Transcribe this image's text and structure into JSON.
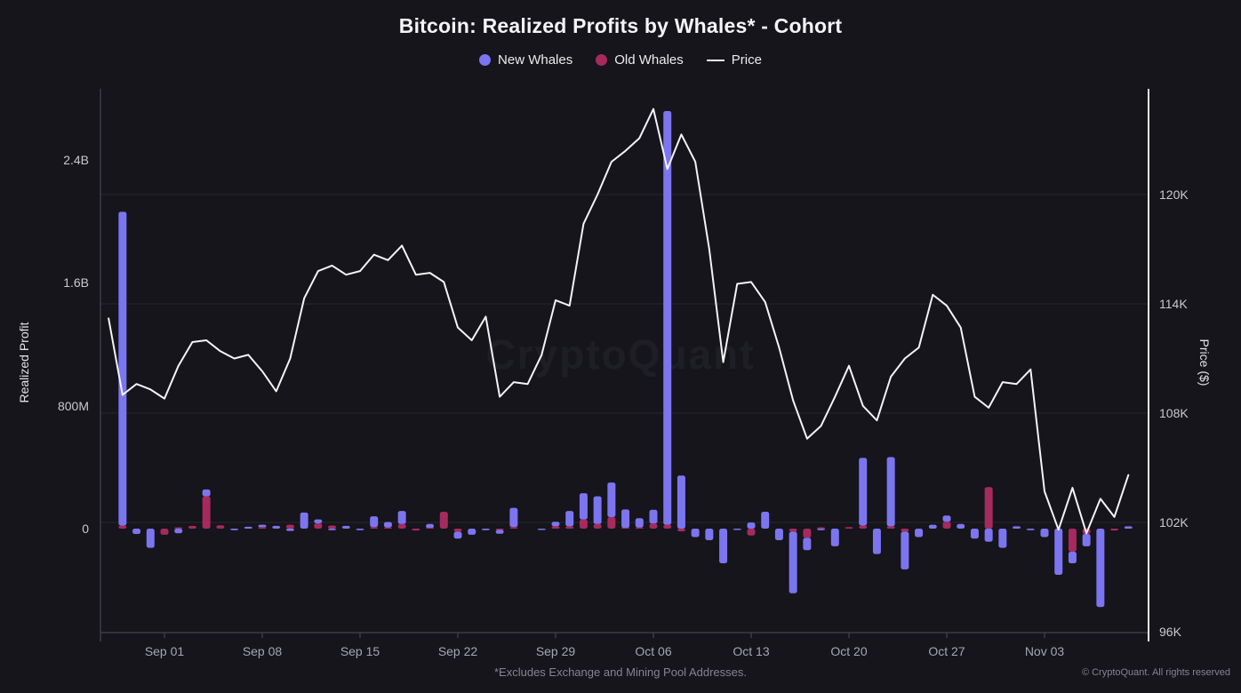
{
  "title": "Bitcoin: Realized Profits by Whales* - Cohort",
  "legend": {
    "new_whales_label": "New Whales",
    "old_whales_label": "Old Whales",
    "price_label": "Price"
  },
  "watermark": "CryptoQuant",
  "footnote": "*Excludes Exchange and Mining Pool Addresses.",
  "copyright": "© CryptoQuant. All rights reserved",
  "colors": {
    "background": "#15151B",
    "new_whales": "#7C75F0",
    "old_whales": "#A62A5E",
    "price_line": "#F4F4F6",
    "gridline": "#26262E",
    "axis_gray": "#3C3C46",
    "axis_white": "#E6E6EA"
  },
  "chart_data": {
    "type": "bar+line combo",
    "title": "Bitcoin: Realized Profits by Whales* - Cohort",
    "left_axis": {
      "label": "Realized Profit",
      "ticks": [
        {
          "label": "0",
          "value": 0
        },
        {
          "label": "800M",
          "value": 800
        },
        {
          "label": "1.6B",
          "value": 1600
        },
        {
          "label": "2.4B",
          "value": 2400
        }
      ],
      "units": "USD (millions)"
    },
    "right_axis": {
      "label": "Price ($)",
      "ticks": [
        {
          "label": "96K",
          "value": 96
        },
        {
          "label": "102K",
          "value": 102
        },
        {
          "label": "108K",
          "value": 108
        },
        {
          "label": "114K",
          "value": 114
        },
        {
          "label": "120K",
          "value": 120
        }
      ],
      "units": "USD (thousands)"
    },
    "x_axis": {
      "week_tick_labels": [
        "Sep 01",
        "Sep 08",
        "Sep 15",
        "Sep 22",
        "Sep 29",
        "Oct 06",
        "Oct 13",
        "Oct 20",
        "Oct 27",
        "Nov 03"
      ],
      "first_week_tick_index": 4,
      "days_per_tick": 7
    },
    "dates": [
      "Aug 28",
      "Aug 29",
      "Aug 30",
      "Aug 31",
      "Sep 01",
      "Sep 02",
      "Sep 03",
      "Sep 04",
      "Sep 05",
      "Sep 06",
      "Sep 07",
      "Sep 08",
      "Sep 09",
      "Sep 10",
      "Sep 11",
      "Sep 12",
      "Sep 13",
      "Sep 14",
      "Sep 15",
      "Sep 16",
      "Sep 17",
      "Sep 18",
      "Sep 19",
      "Sep 20",
      "Sep 21",
      "Sep 22",
      "Sep 23",
      "Sep 24",
      "Sep 25",
      "Sep 26",
      "Sep 27",
      "Sep 28",
      "Sep 29",
      "Sep 30",
      "Oct 01",
      "Oct 02",
      "Oct 03",
      "Oct 04",
      "Oct 05",
      "Oct 06",
      "Oct 07",
      "Oct 08",
      "Oct 09",
      "Oct 10",
      "Oct 11",
      "Oct 12",
      "Oct 13",
      "Oct 14",
      "Oct 15",
      "Oct 16",
      "Oct 17",
      "Oct 18",
      "Oct 19",
      "Oct 20",
      "Oct 21",
      "Oct 22",
      "Oct 23",
      "Oct 24",
      "Oct 25",
      "Oct 26",
      "Oct 27",
      "Oct 28",
      "Oct 29",
      "Oct 30",
      "Oct 31",
      "Nov 01",
      "Nov 02",
      "Nov 03",
      "Nov 04",
      "Nov 05",
      "Nov 06",
      "Nov 07",
      "Nov 08",
      "Nov 09"
    ],
    "series": [
      {
        "name": "New Whales",
        "type": "bar",
        "color": "#7C75F0",
        "unit": "USD millions",
        "values": [
          0,
          2040,
          -35,
          -125,
          0,
          -30,
          0,
          45,
          0,
          -10,
          12,
          15,
          18,
          -15,
          105,
          25,
          -10,
          18,
          -10,
          70,
          35,
          85,
          0,
          25,
          0,
          -45,
          -40,
          -10,
          -25,
          125,
          0,
          -6,
          30,
          100,
          170,
          180,
          225,
          120,
          60,
          90,
          2690,
          345,
          -55,
          -75,
          -225,
          -6,
          40,
          110,
          -75,
          -400,
          -80,
          -10,
          -115,
          0,
          440,
          -165,
          450,
          -245,
          -55,
          25,
          40,
          30,
          -65,
          -85,
          -125,
          15,
          -10,
          -55,
          -300,
          -75,
          -80,
          -510,
          0,
          15
        ]
      },
      {
        "name": "Old Whales",
        "type": "bar",
        "color": "#A62A5E",
        "unit": "USD millions",
        "values": [
          0,
          20,
          0,
          0,
          -40,
          8,
          18,
          210,
          22,
          0,
          0,
          10,
          0,
          25,
          0,
          35,
          20,
          0,
          0,
          10,
          8,
          30,
          -12,
          5,
          110,
          -20,
          0,
          0,
          -8,
          10,
          0,
          0,
          15,
          15,
          60,
          30,
          75,
          5,
          8,
          33,
          25,
          -18,
          0,
          0,
          0,
          0,
          -45,
          0,
          0,
          -20,
          -60,
          8,
          0,
          10,
          20,
          0,
          15,
          -20,
          0,
          0,
          45,
          0,
          0,
          270,
          0,
          0,
          0,
          0,
          0,
          -150,
          -35,
          0,
          -12,
          0
        ]
      },
      {
        "name": "Price",
        "type": "line",
        "color": "#F4F4F6",
        "unit": "USD thousands",
        "values": [
          113.2,
          109.0,
          109.6,
          109.3,
          108.8,
          110.6,
          111.9,
          112.0,
          111.4,
          111.0,
          111.2,
          110.3,
          109.2,
          111.0,
          114.3,
          115.8,
          116.1,
          115.6,
          115.8,
          116.7,
          116.4,
          117.2,
          115.6,
          115.7,
          115.2,
          112.7,
          112.0,
          113.3,
          108.9,
          109.7,
          109.6,
          111.2,
          114.2,
          113.9,
          118.4,
          120.0,
          121.8,
          122.4,
          123.1,
          124.7,
          121.4,
          123.3,
          121.8,
          117.0,
          110.8,
          115.1,
          115.2,
          114.1,
          111.6,
          108.7,
          106.6,
          107.3,
          108.9,
          110.6,
          108.4,
          107.6,
          110.0,
          111.0,
          111.6,
          114.5,
          113.9,
          112.7,
          108.9,
          108.3,
          109.7,
          109.6,
          110.4,
          103.7,
          101.6,
          103.9,
          101.4,
          103.3,
          102.3,
          104.6
        ]
      }
    ],
    "legend_position": "top-center",
    "grid": "horizontal lines at right-axis (price) ticks"
  }
}
